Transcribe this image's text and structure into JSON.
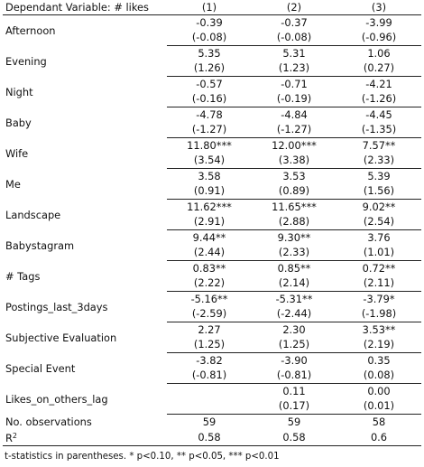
{
  "table": {
    "dependent_label": "Dependant Variable: # likes",
    "models": [
      "(1)",
      "(2)",
      "(3)"
    ],
    "rows": [
      {
        "label": "Afternoon",
        "coef": [
          "-0.39",
          "-0.37",
          "-3.99"
        ],
        "t": [
          "(-0.08)",
          "(-0.08)",
          "(-0.96)"
        ]
      },
      {
        "label": "Evening",
        "coef": [
          "5.35",
          "5.31",
          "1.06"
        ],
        "t": [
          "(1.26)",
          "(1.23)",
          "(0.27)"
        ]
      },
      {
        "label": "Night",
        "coef": [
          "-0.57",
          "-0.71",
          "-4.21"
        ],
        "t": [
          "(-0.16)",
          "(-0.19)",
          "(-1.26)"
        ]
      },
      {
        "label": "Baby",
        "coef": [
          "-4.78",
          "-4.84",
          "-4.45"
        ],
        "t": [
          "(-1.27)",
          "(-1.27)",
          "(-1.35)"
        ]
      },
      {
        "label": "Wife",
        "coef": [
          "11.80***",
          "12.00***",
          "7.57**"
        ],
        "t": [
          "(3.54)",
          "(3.38)",
          "(2.33)"
        ]
      },
      {
        "label": "Me",
        "coef": [
          "3.58",
          "3.53",
          "5.39"
        ],
        "t": [
          "(0.91)",
          "(0.89)",
          "(1.56)"
        ]
      },
      {
        "label": "Landscape",
        "coef": [
          "11.62***",
          "11.65***",
          "9.02**"
        ],
        "t": [
          "(2.91)",
          "(2.88)",
          "(2.54)"
        ]
      },
      {
        "label": "Babystagram",
        "coef": [
          "9.44**",
          "9.30**",
          "3.76"
        ],
        "t": [
          "(2.44)",
          "(2.33)",
          "(1.01)"
        ]
      },
      {
        "label": "# Tags",
        "coef": [
          "0.83**",
          "0.85**",
          "0.72**"
        ],
        "t": [
          "(2.22)",
          "(2.14)",
          "(2.11)"
        ]
      },
      {
        "label": "Postings_last_3days",
        "coef": [
          "-5.16**",
          "-5.31**",
          "-3.79*"
        ],
        "t": [
          "(-2.59)",
          "(-2.44)",
          "(-1.98)"
        ]
      },
      {
        "label": "Subjective Evaluation",
        "coef": [
          "2.27",
          "2.30",
          "3.53**"
        ],
        "t": [
          "(1.25)",
          "(1.25)",
          "(2.19)"
        ]
      },
      {
        "label": "Special Event",
        "coef": [
          "-3.82",
          "-3.90",
          "0.35"
        ],
        "t": [
          "(-0.81)",
          "(-0.81)",
          "(0.08)"
        ]
      },
      {
        "label": "Likes_on_others_lag",
        "coef": [
          "",
          "0.11",
          "0.00"
        ],
        "t": [
          "",
          "(0.17)",
          "(0.01)"
        ]
      }
    ],
    "stats": [
      {
        "label": "No. observations",
        "values": [
          "59",
          "59",
          "58"
        ]
      },
      {
        "label_main": "R",
        "label_sup": "2",
        "values": [
          "0.58",
          "0.58",
          "0.6"
        ]
      }
    ],
    "note": "t-statistics in parentheses. * p<0.10, ** p<0.05, *** p<0.01"
  }
}
